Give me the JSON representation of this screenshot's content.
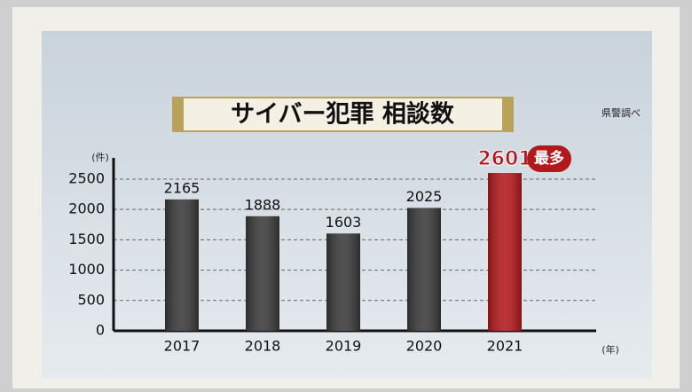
{
  "chart_data": {
    "type": "bar",
    "title": "サイバー犯罪 相談数",
    "source": "県警調べ",
    "y_unit": "(件)",
    "x_unit": "(年)",
    "annotation": "最多",
    "categories": [
      "2017",
      "2018",
      "2019",
      "2020",
      "2021"
    ],
    "values": [
      2165,
      1888,
      1603,
      2025,
      2601
    ],
    "colors": [
      "#3a3a3a",
      "#3a3a3a",
      "#3a3a3a",
      "#3a3a3a",
      "#b3191c"
    ],
    "ylim": [
      0,
      2850
    ],
    "yticks": [
      0,
      500,
      1000,
      1500,
      2000,
      2500
    ],
    "grid": true
  }
}
